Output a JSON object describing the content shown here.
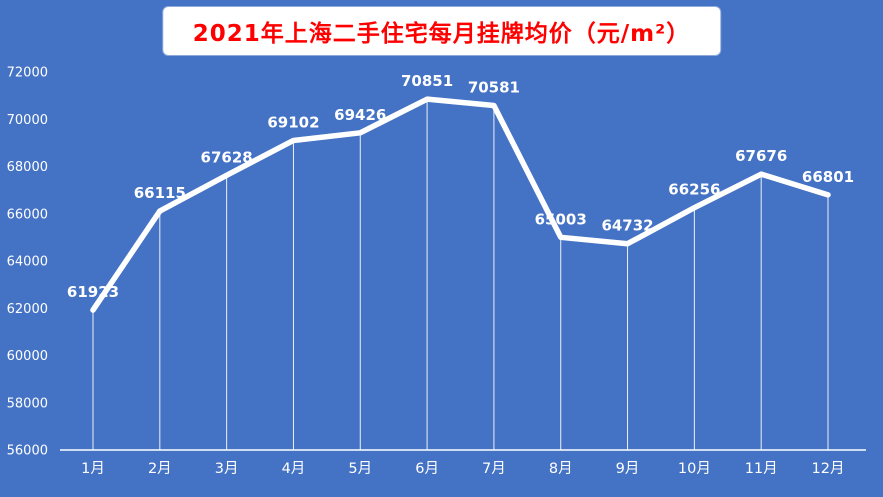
{
  "title": "2021年上海二手住宅每月挂牌均价（元/m²）",
  "colors": {
    "background": "#4472C4",
    "title_text": "#FF0000",
    "title_bg": "#FFFFFF",
    "line": "#FFFFFF",
    "axis_text": "#FFFFFF",
    "label_text": "#FFFFFF"
  },
  "chart_data": {
    "type": "line",
    "title": "2021年上海二手住宅每月挂牌均价（元/m²）",
    "categories": [
      "1月",
      "2月",
      "3月",
      "4月",
      "5月",
      "6月",
      "7月",
      "8月",
      "9月",
      "10月",
      "11月",
      "12月"
    ],
    "values": [
      61923,
      66115,
      67628,
      69102,
      69426,
      70851,
      70581,
      65003,
      64732,
      66256,
      67676,
      66801
    ],
    "xlabel": "",
    "ylabel": "",
    "ylim": [
      56000,
      72000
    ],
    "ytick_step": 2000,
    "yticks": [
      56000,
      58000,
      60000,
      62000,
      64000,
      66000,
      68000,
      70000,
      72000
    ],
    "grid": false,
    "legend": false,
    "drop_lines": true
  }
}
